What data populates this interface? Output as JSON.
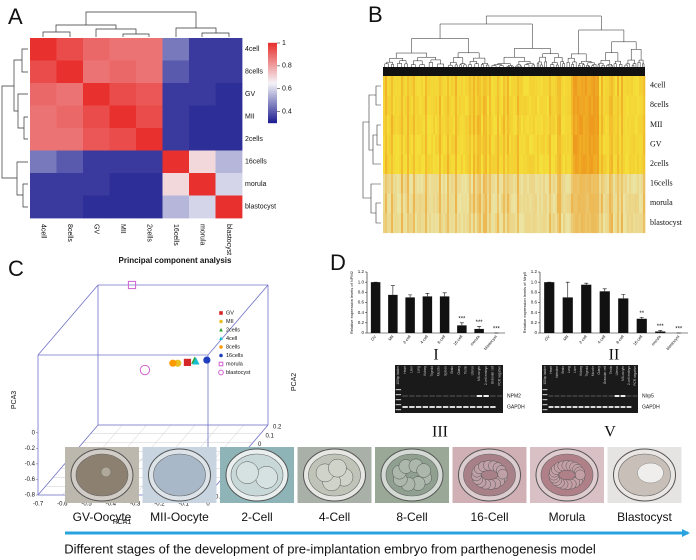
{
  "panel_labels": [
    "A",
    "B",
    "C",
    "D"
  ],
  "chart_data": [
    {
      "type": "heatmap",
      "rows": [
        "4cell",
        "8cells",
        "GV",
        "MII",
        "2cells",
        "16cells",
        "morula",
        "blastocyst"
      ],
      "columns": [
        "4cell",
        "8cells",
        "GV",
        "MII",
        "2cells",
        "16cells",
        "morula",
        "blastocyst"
      ],
      "values": [
        [
          1,
          0.95,
          0.9,
          0.88,
          0.88,
          0.45,
          0.35,
          0.35
        ],
        [
          0.95,
          1,
          0.88,
          0.9,
          0.88,
          0.4,
          0.35,
          0.35
        ],
        [
          0.9,
          0.88,
          1,
          0.95,
          0.93,
          0.35,
          0.35,
          0.33
        ],
        [
          0.88,
          0.9,
          0.95,
          1,
          0.95,
          0.35,
          0.33,
          0.33
        ],
        [
          0.88,
          0.88,
          0.93,
          0.95,
          1,
          0.35,
          0.33,
          0.33
        ],
        [
          0.45,
          0.4,
          0.35,
          0.35,
          0.35,
          1,
          0.7,
          0.55
        ],
        [
          0.35,
          0.35,
          0.35,
          0.33,
          0.33,
          0.7,
          1,
          0.6
        ],
        [
          0.35,
          0.35,
          0.33,
          0.33,
          0.33,
          0.55,
          0.6,
          1
        ]
      ],
      "zlim": [
        0.3,
        1
      ],
      "zticks": [
        0.4,
        0.6,
        0.8,
        1
      ],
      "colors": [
        "#1b1b8f",
        "#f4f4f8",
        "#e8302e"
      ]
    },
    {
      "type": "clustered-heatmap",
      "rows": [
        "4cell",
        "8cells",
        "MII",
        "GV",
        "2cells",
        "16cells",
        "morula",
        "blastocyst"
      ],
      "colors": [
        "#f5e03a",
        "#ee9a1e",
        "#ebe5a4"
      ]
    },
    {
      "type": "scatter3d",
      "title": "Principal component analysis",
      "xlabel": "PCA1",
      "ylabel": "PCA2",
      "zlabel": "PCA3",
      "xlim": [
        -0.7,
        0
      ],
      "ylim": [
        -0.6,
        0.2
      ],
      "zlim": [
        -0.8,
        1.0
      ],
      "xticks": [
        -0.7,
        -0.6,
        -0.5,
        -0.4,
        -0.3,
        -0.2,
        -0.1,
        0
      ],
      "yticks": [
        -0.6,
        -0.5,
        -0.4,
        -0.3,
        -0.2,
        -0.1,
        0,
        0.1,
        0.2
      ],
      "zticks": [
        -0.8,
        -0.6,
        -0.4,
        -0.2,
        0
      ],
      "series": [
        {
          "name": "GV",
          "color": "#d62728",
          "marker": "square",
          "x": [
            -0.27
          ],
          "y": [
            0
          ],
          "z": [
            0.23
          ]
        },
        {
          "name": "MII",
          "color": "#e8c020",
          "marker": "circle",
          "x": [
            -0.31
          ],
          "y": [
            0
          ],
          "z": [
            0.22
          ]
        },
        {
          "name": "2cells",
          "color": "#2ca02c",
          "marker": "triangle",
          "x": [
            -0.24
          ],
          "y": [
            0
          ],
          "z": [
            0.25
          ]
        },
        {
          "name": "4cell",
          "color": "#17becf",
          "marker": "triangle",
          "x": [
            -0.235
          ],
          "y": [
            0
          ],
          "z": [
            0.24
          ]
        },
        {
          "name": "8cells",
          "color": "#ff9900",
          "marker": "circle",
          "x": [
            -0.33
          ],
          "y": [
            0
          ],
          "z": [
            0.22
          ]
        },
        {
          "name": "16cells",
          "color": "#1f3fbf",
          "marker": "circle",
          "x": [
            -0.19
          ],
          "y": [
            0
          ],
          "z": [
            0.26
          ]
        },
        {
          "name": "morula",
          "color": "#d060d0",
          "marker": "open-square",
          "x": [
            -0.56
          ],
          "y": [
            0.2
          ],
          "z": [
            1.0
          ]
        },
        {
          "name": "blastocyst",
          "color": "#d060d0",
          "marker": "open-circle",
          "x": [
            -0.445
          ],
          "y": [
            0
          ],
          "z": [
            0.132
          ]
        }
      ]
    },
    {
      "type": "bar",
      "label": "I",
      "ylabel": "Relative expression levels of NPM2",
      "categories": [
        "GV",
        "MII",
        "2-cell",
        "4-cell",
        "8-cell",
        "16-cell",
        "morula",
        "blastocyst"
      ],
      "values": [
        1.0,
        0.75,
        0.7,
        0.72,
        0.72,
        0.15,
        0.08,
        0.0
      ],
      "errors": [
        0,
        0.18,
        0.05,
        0.06,
        0.07,
        0.05,
        0.05,
        0
      ],
      "annotations": [
        null,
        null,
        null,
        null,
        null,
        "***",
        "***",
        "***"
      ],
      "color": "#111111",
      "ylim": [
        0,
        1.2
      ],
      "yticks": [
        0,
        0.2,
        0.4,
        0.6,
        0.8,
        {
          "value": 1,
          "label": "1.0"
        },
        1.2
      ]
    },
    {
      "type": "bar",
      "label": "II",
      "ylabel": "Relative expression levels of Nlrp5",
      "categories": [
        "GV",
        "MII",
        "2-cell",
        "4-cell",
        "8-cell",
        "16-cell",
        "morula",
        "blastocyst"
      ],
      "values": [
        1.0,
        0.7,
        0.95,
        0.82,
        0.68,
        0.28,
        0.03,
        0.0
      ],
      "errors": [
        0,
        0.3,
        0.03,
        0.05,
        0.08,
        0.03,
        0.02,
        0
      ],
      "annotations": [
        null,
        null,
        null,
        null,
        null,
        "**",
        "***",
        "***"
      ],
      "color": "#111111",
      "ylim": [
        0,
        1.2
      ],
      "yticks": [
        0,
        0.2,
        0.4,
        0.6,
        0.8,
        {
          "value": 1,
          "label": "1.0"
        },
        1.2
      ]
    }
  ],
  "gels": [
    {
      "label": "III",
      "bands": [
        "NPM2",
        "GAPDH"
      ],
      "lanes": [
        "100bp ladder",
        "Heart",
        "Liver",
        "Lung",
        "Kidney",
        "Thyroid",
        "Muscle",
        "Spleen",
        "Brain",
        "Ovary",
        "Testis",
        "Uterus",
        "MII-oocyte",
        "2-cell embryo",
        "Granular cell",
        "PCR negative"
      ]
    },
    {
      "label": "V",
      "bands": [
        "Nlrp5",
        "GAPDH"
      ],
      "lanes": [
        "100bp ladder",
        "Heart",
        "Intestine",
        "Brain",
        "Lung",
        "Liver",
        "Kidney",
        "Thyroid",
        "Muscle",
        "Ovary",
        "Granular cell",
        "Testis",
        "Uterus",
        "MII-oocyte",
        "2-cell embryo",
        "PCR negative"
      ]
    }
  ],
  "stages": {
    "labels": [
      "GV-Oocyte",
      "MII-Oocyte",
      "2-Cell",
      "4-Cell",
      "8-Cell",
      "16-Cell",
      "Morula",
      "Blastocyst"
    ],
    "caption": "Different stages of the development of pre-implantation embryo from parthenogenesis model"
  }
}
